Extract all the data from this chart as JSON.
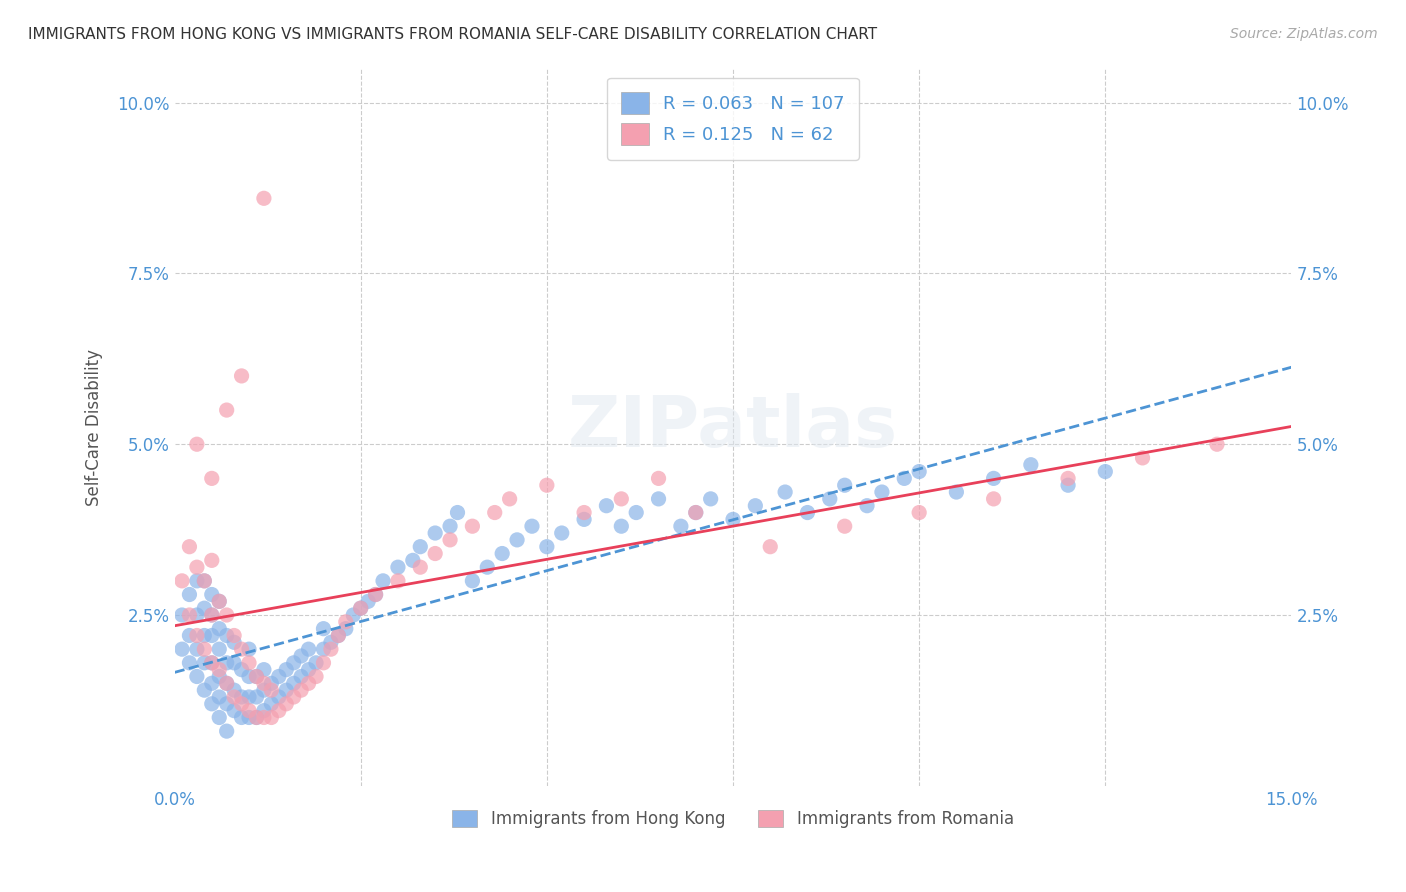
{
  "title": "IMMIGRANTS FROM HONG KONG VS IMMIGRANTS FROM ROMANIA SELF-CARE DISABILITY CORRELATION CHART",
  "source": "Source: ZipAtlas.com",
  "ylabel": "Self-Care Disability",
  "xlabel": "",
  "xlim": [
    0.0,
    0.15
  ],
  "ylim": [
    0.0,
    0.105
  ],
  "xticks": [
    0.0,
    0.025,
    0.05,
    0.075,
    0.1,
    0.125,
    0.15
  ],
  "xticklabels": [
    "0.0%",
    "",
    "",
    "",
    "",
    "",
    "15.0%"
  ],
  "yticks": [
    0.0,
    0.025,
    0.05,
    0.075,
    0.1
  ],
  "yticklabels": [
    "",
    "2.5%",
    "5.0%",
    "7.5%",
    "10.0%"
  ],
  "hk_color": "#8ab4e8",
  "ro_color": "#f4a0b0",
  "hk_line_color": "#4d94d4",
  "ro_line_color": "#e8405a",
  "hk_R": 0.063,
  "hk_N": 107,
  "ro_R": 0.125,
  "ro_N": 62,
  "watermark": "ZIPatlas",
  "background_color": "#ffffff",
  "grid_color": "#cccccc",
  "legend_box_color": "#f0f0f0",
  "hk_scatter_x": [
    0.001,
    0.002,
    0.002,
    0.003,
    0.003,
    0.003,
    0.004,
    0.004,
    0.004,
    0.004,
    0.005,
    0.005,
    0.005,
    0.005,
    0.005,
    0.006,
    0.006,
    0.006,
    0.006,
    0.006,
    0.007,
    0.007,
    0.007,
    0.007,
    0.008,
    0.008,
    0.008,
    0.008,
    0.009,
    0.009,
    0.009,
    0.01,
    0.01,
    0.01,
    0.01,
    0.011,
    0.011,
    0.011,
    0.012,
    0.012,
    0.012,
    0.013,
    0.013,
    0.014,
    0.014,
    0.015,
    0.015,
    0.016,
    0.016,
    0.017,
    0.017,
    0.018,
    0.018,
    0.019,
    0.02,
    0.02,
    0.021,
    0.022,
    0.023,
    0.024,
    0.025,
    0.026,
    0.027,
    0.028,
    0.03,
    0.032,
    0.033,
    0.035,
    0.037,
    0.038,
    0.04,
    0.042,
    0.044,
    0.046,
    0.048,
    0.05,
    0.052,
    0.055,
    0.058,
    0.06,
    0.062,
    0.065,
    0.068,
    0.07,
    0.072,
    0.075,
    0.078,
    0.082,
    0.085,
    0.088,
    0.09,
    0.093,
    0.095,
    0.098,
    0.1,
    0.105,
    0.11,
    0.115,
    0.12,
    0.125,
    0.001,
    0.002,
    0.003,
    0.004,
    0.005,
    0.006,
    0.007
  ],
  "hk_scatter_y": [
    0.025,
    0.022,
    0.028,
    0.02,
    0.025,
    0.03,
    0.018,
    0.022,
    0.026,
    0.03,
    0.015,
    0.018,
    0.022,
    0.025,
    0.028,
    0.013,
    0.016,
    0.02,
    0.023,
    0.027,
    0.012,
    0.015,
    0.018,
    0.022,
    0.011,
    0.014,
    0.018,
    0.021,
    0.01,
    0.013,
    0.017,
    0.01,
    0.013,
    0.016,
    0.02,
    0.01,
    0.013,
    0.016,
    0.011,
    0.014,
    0.017,
    0.012,
    0.015,
    0.013,
    0.016,
    0.014,
    0.017,
    0.015,
    0.018,
    0.016,
    0.019,
    0.017,
    0.02,
    0.018,
    0.02,
    0.023,
    0.021,
    0.022,
    0.023,
    0.025,
    0.026,
    0.027,
    0.028,
    0.03,
    0.032,
    0.033,
    0.035,
    0.037,
    0.038,
    0.04,
    0.03,
    0.032,
    0.034,
    0.036,
    0.038,
    0.035,
    0.037,
    0.039,
    0.041,
    0.038,
    0.04,
    0.042,
    0.038,
    0.04,
    0.042,
    0.039,
    0.041,
    0.043,
    0.04,
    0.042,
    0.044,
    0.041,
    0.043,
    0.045,
    0.046,
    0.043,
    0.045,
    0.047,
    0.044,
    0.046,
    0.02,
    0.018,
    0.016,
    0.014,
    0.012,
    0.01,
    0.008
  ],
  "ro_scatter_x": [
    0.001,
    0.002,
    0.002,
    0.003,
    0.003,
    0.004,
    0.004,
    0.005,
    0.005,
    0.005,
    0.006,
    0.006,
    0.007,
    0.007,
    0.008,
    0.008,
    0.009,
    0.009,
    0.01,
    0.01,
    0.011,
    0.011,
    0.012,
    0.012,
    0.013,
    0.013,
    0.014,
    0.015,
    0.016,
    0.017,
    0.018,
    0.019,
    0.02,
    0.021,
    0.022,
    0.023,
    0.025,
    0.027,
    0.03,
    0.033,
    0.035,
    0.037,
    0.04,
    0.043,
    0.045,
    0.05,
    0.055,
    0.06,
    0.065,
    0.07,
    0.08,
    0.09,
    0.1,
    0.11,
    0.12,
    0.13,
    0.14,
    0.003,
    0.005,
    0.007,
    0.009,
    0.012
  ],
  "ro_scatter_y": [
    0.03,
    0.025,
    0.035,
    0.022,
    0.032,
    0.02,
    0.03,
    0.018,
    0.025,
    0.033,
    0.017,
    0.027,
    0.015,
    0.025,
    0.013,
    0.022,
    0.012,
    0.02,
    0.011,
    0.018,
    0.01,
    0.016,
    0.01,
    0.015,
    0.01,
    0.014,
    0.011,
    0.012,
    0.013,
    0.014,
    0.015,
    0.016,
    0.018,
    0.02,
    0.022,
    0.024,
    0.026,
    0.028,
    0.03,
    0.032,
    0.034,
    0.036,
    0.038,
    0.04,
    0.042,
    0.044,
    0.04,
    0.042,
    0.045,
    0.04,
    0.035,
    0.038,
    0.04,
    0.042,
    0.045,
    0.048,
    0.05,
    0.05,
    0.045,
    0.055,
    0.06,
    0.086
  ]
}
